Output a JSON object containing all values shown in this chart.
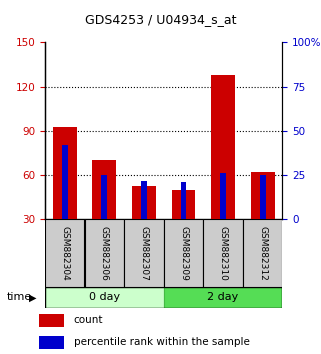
{
  "title": "GDS4253 / U04934_s_at",
  "samples": [
    "GSM882304",
    "GSM882306",
    "GSM882307",
    "GSM882309",
    "GSM882310",
    "GSM882312"
  ],
  "count_values": [
    93,
    70,
    53,
    50,
    128,
    62
  ],
  "percentile_values": [
    42,
    25,
    22,
    21,
    26,
    25
  ],
  "left_ylim": [
    30,
    150
  ],
  "left_yticks": [
    30,
    60,
    90,
    120,
    150
  ],
  "right_ylim": [
    0,
    100
  ],
  "right_yticks": [
    0,
    25,
    50,
    75,
    100
  ],
  "left_color": "#cc0000",
  "right_color": "#0000cc",
  "red_bar_width": 0.6,
  "blue_bar_width": 0.15,
  "groups": [
    {
      "label": "0 day",
      "indices": [
        0,
        1,
        2
      ],
      "light_color": "#ccffcc",
      "dark_color": "#44bb44"
    },
    {
      "label": "2 day",
      "indices": [
        3,
        4,
        5
      ],
      "light_color": "#55dd55",
      "dark_color": "#44bb44"
    }
  ],
  "label_area_color": "#cccccc",
  "time_label": "time",
  "legend_count": "count",
  "legend_percentile": "percentile rank within the sample"
}
